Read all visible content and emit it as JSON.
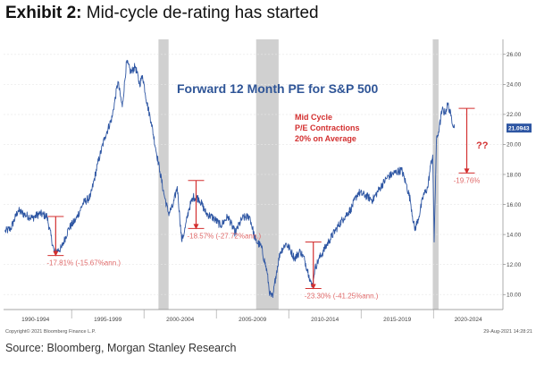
{
  "header": {
    "exhibit_label": "Exhibit 2:",
    "exhibit_title": "Mid-cycle de-rating has started"
  },
  "footer": {
    "source": "Source: Bloomberg, Morgan Stanley Research",
    "copyright": "Copyright© 2021 Bloomberg Finance L.P.",
    "timestamp": "29-Aug-2021 14:28:21"
  },
  "colors": {
    "line": "#2e56a3",
    "annotation": "#d32f2f",
    "annotation_light": "#e06a6a",
    "recession": "#d0d0d0",
    "title": "#2f5597"
  },
  "chart_data": {
    "type": "line",
    "title": "Forward 12 Month PE for S&P 500",
    "annotation_title": [
      "Mid Cycle",
      "P/E Contractions",
      "20% on Average"
    ],
    "question": "??",
    "last_value": "21.0943",
    "y_axis_side": "right",
    "ylim": [
      9,
      27
    ],
    "yticks": [
      10,
      12,
      14,
      16,
      18,
      20,
      22,
      24,
      26
    ],
    "ytick_labels": [
      "10.00",
      "12.00",
      "14.00",
      "16.00",
      "18.00",
      "20.00",
      "22.00",
      "24.00",
      "26.00"
    ],
    "xlim": [
      1990.5,
      2025
    ],
    "x_period_labels": [
      {
        "label": "1990-1994",
        "center": 1992.7
      },
      {
        "label": "1995-1999",
        "center": 1997.7
      },
      {
        "label": "2000-2004",
        "center": 2002.7
      },
      {
        "label": "2005-2009",
        "center": 2007.7
      },
      {
        "label": "2010-2014",
        "center": 2012.7
      },
      {
        "label": "2015-2019",
        "center": 2017.7
      },
      {
        "label": "2020-2024",
        "center": 2022.6
      }
    ],
    "x_period_boundaries": [
      1995.2,
      2000.2,
      2005.2,
      2010.2,
      2015.2,
      2020.2
    ],
    "recessions": [
      [
        2001.2,
        2001.9
      ],
      [
        2007.95,
        2009.5
      ],
      [
        2020.15,
        2020.55
      ]
    ],
    "series": [
      {
        "x": [
          1990.6,
          1991.0,
          1991.5,
          1992.0,
          1992.5,
          1993.0,
          1993.5,
          1994.0,
          1994.5,
          1995.0,
          1995.5,
          1996.0,
          1996.5,
          1997.0,
          1997.5,
          1998.0,
          1998.4,
          1998.7,
          1999.0,
          1999.3,
          1999.6,
          1999.9,
          2000.1,
          2000.4,
          2000.7,
          2001.0,
          2001.3,
          2001.6,
          2001.9,
          2002.2,
          2002.5,
          2002.8,
          2003.0,
          2003.3,
          2003.6,
          2004.0,
          2004.5,
          2005.0,
          2005.5,
          2006.0,
          2006.5,
          2007.0,
          2007.5,
          2007.9,
          2008.3,
          2008.7,
          2008.9,
          2009.1,
          2009.3,
          2009.6,
          2010.0,
          2010.3,
          2010.6,
          2011.0,
          2011.3,
          2011.6,
          2011.8,
          2012.0,
          2012.3,
          2012.6,
          2013.0,
          2013.5,
          2014.0,
          2014.5,
          2015.0,
          2015.5,
          2016.0,
          2016.5,
          2017.0,
          2017.5,
          2018.0,
          2018.3,
          2018.6,
          2018.9,
          2019.2,
          2019.5,
          2019.8,
          2020.0,
          2020.15,
          2020.25,
          2020.4,
          2020.6,
          2020.8,
          2021.0,
          2021.2,
          2021.4,
          2021.65
        ],
        "y": [
          14.2,
          14.4,
          15.6,
          15.3,
          15.1,
          15.4,
          15.2,
          12.8,
          13.1,
          14.4,
          15.0,
          16.1,
          16.5,
          18.7,
          20.5,
          21.8,
          24.2,
          22.5,
          25.5,
          24.8,
          25.2,
          24.0,
          24.6,
          22.8,
          21.5,
          19.8,
          18.2,
          16.6,
          15.4,
          15.9,
          17.2,
          13.6,
          14.2,
          15.7,
          16.5,
          16.4,
          15.4,
          15.1,
          14.6,
          15.2,
          14.1,
          15.1,
          15.2,
          13.6,
          13.2,
          11.5,
          10.0,
          9.8,
          11.2,
          12.8,
          13.4,
          13.0,
          12.4,
          12.9,
          12.3,
          11.3,
          10.5,
          11.7,
          12.4,
          12.9,
          13.6,
          14.4,
          15.1,
          15.7,
          16.8,
          16.6,
          16.3,
          17.1,
          17.8,
          18.1,
          18.3,
          17.4,
          16.3,
          14.3,
          15.2,
          16.6,
          17.1,
          18.6,
          19.3,
          13.5,
          20.2,
          21.1,
          22.3,
          22.1,
          22.7,
          21.9,
          21.09
        ]
      }
    ],
    "contractions": [
      {
        "x": 1994.1,
        "from": 15.2,
        "to": 12.6,
        "label": "-17.81% (-15.67%ann.)"
      },
      {
        "x": 2003.8,
        "from": 17.6,
        "to": 14.4,
        "label": "-18.57% (-27.72%ann.)"
      },
      {
        "x": 2011.9,
        "from": 13.5,
        "to": 10.4,
        "label": "-23.30% (-41.25%ann.)"
      },
      {
        "x": 2022.5,
        "from": 22.4,
        "to": 18.1,
        "label": "-19.76%"
      }
    ]
  }
}
